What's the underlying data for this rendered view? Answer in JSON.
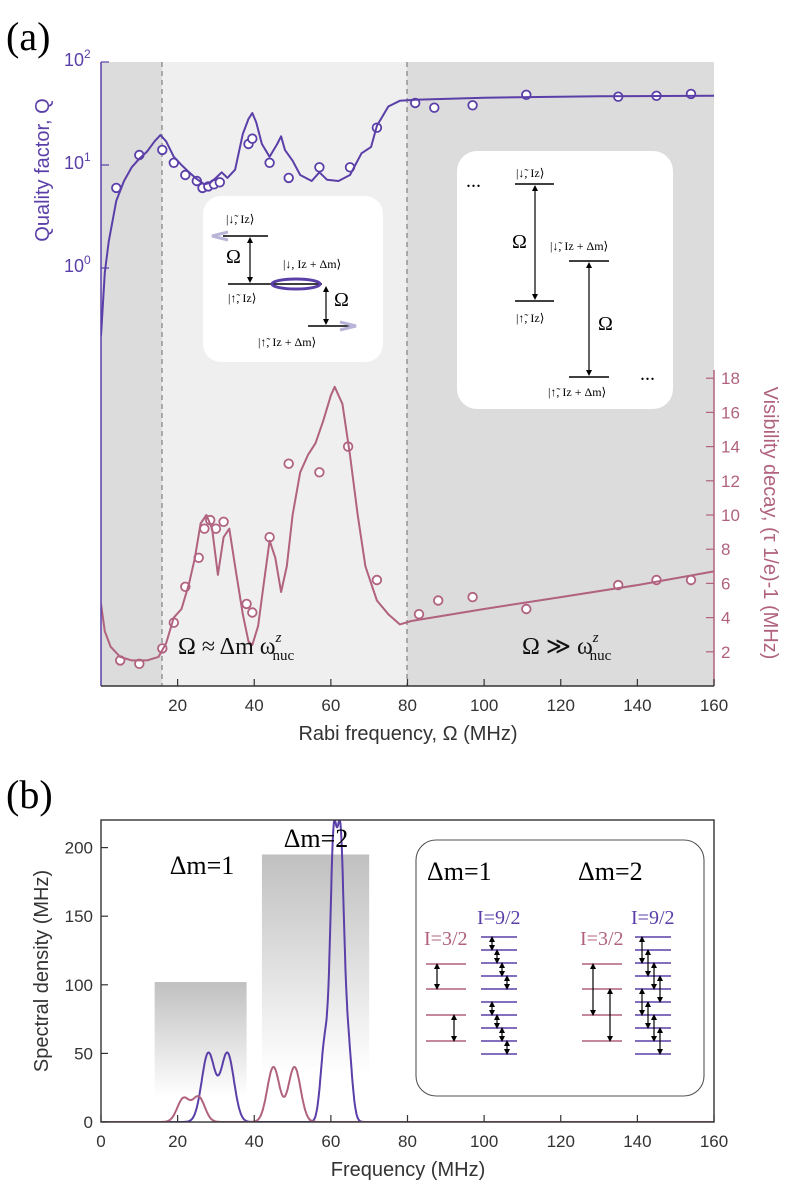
{
  "colors": {
    "purple": "#5b3fa8",
    "pink": "#b0627f",
    "shade_dark": "#dcdcdc",
    "shade_light": "#efefef"
  },
  "panel_a": {
    "label": "(a)",
    "ylabel_left": "Quality factor,  Q",
    "ylabel_right": "Visibility decay, (τ 1/e)-1 (MHz)",
    "xlabel": "Rabi frequency, Ω (MHz)",
    "regime_left": "Ω ≈ Δm ω",
    "regime_left_sup": "z",
    "regime_left_sub": "nuc",
    "regime_right": "Ω ≫ ω",
    "regime_right_sup": "z",
    "regime_right_sub": "nuc",
    "inset1": {
      "l1": "|↓̃, Iz⟩",
      "l2": "|↓, Iz + Δm⟩",
      "l3": "|↑̃, Iz⟩",
      "l4": "|↑̃, Iz + Δm⟩",
      "omega": "Ω"
    },
    "inset2": {
      "l1": "|↓̃, Iz⟩",
      "l2": "|↓̃, Iz + Δm⟩",
      "l3": "|↑̃, Iz⟩",
      "l4": "|↑̃, Iz + Δm⟩",
      "omega": "Ω",
      "dots": "..."
    }
  },
  "panel_b": {
    "label": "(b)",
    "ylabel": "Spectral density (MHz)",
    "xlabel": "Frequency (MHz)",
    "box1_label": "Δm=1",
    "box2_label": "Δm=2",
    "inset_title1": "Δm=1",
    "inset_title2": "Δm=2",
    "spin_small": "I=3/2",
    "spin_large": "I=9/2"
  },
  "chart_data": [
    {
      "type": "scatter",
      "title": "",
      "xlabel": "Rabi frequency, Ω (MHz)",
      "x_ticks": [
        20,
        40,
        60,
        80,
        100,
        120,
        140,
        160
      ],
      "xlim": [
        0,
        160
      ],
      "y_left": {
        "label": "Quality factor, Q",
        "scale": "log",
        "ticks": [
          "10^0",
          "10^1",
          "10^2"
        ]
      },
      "y_right": {
        "label": "Visibility decay, (τ1/e)^-1 (MHz)",
        "ylim": [
          0,
          18
        ],
        "ticks": [
          2,
          4,
          6,
          8,
          10,
          12,
          14,
          16,
          18
        ]
      },
      "regions": [
        {
          "from": 0,
          "to": 16,
          "shade": "dark"
        },
        {
          "from": 16,
          "to": 80,
          "shade": "light",
          "label": "Ω ≈ Δm ω_nuc^z"
        },
        {
          "from": 80,
          "to": 160,
          "shade": "dark",
          "label": "Ω ≫ ω_nuc^z"
        }
      ],
      "series": [
        {
          "name": "Quality factor (data)",
          "color": "#5b3fa8",
          "axis": "left",
          "marker": "circle",
          "points": [
            [
              4,
              6
            ],
            [
              10,
              12.5
            ],
            [
              16,
              14
            ],
            [
              19,
              10.5
            ],
            [
              22,
              8
            ],
            [
              25,
              7
            ],
            [
              26.5,
              6
            ],
            [
              28,
              6.2
            ],
            [
              29.5,
              6.5
            ],
            [
              31,
              6.8
            ],
            [
              38.5,
              16
            ],
            [
              39.5,
              18
            ],
            [
              44,
              10.5
            ],
            [
              49,
              7.5
            ],
            [
              57,
              9.5
            ],
            [
              65,
              9.5
            ],
            [
              72,
              23
            ],
            [
              82,
              40
            ],
            [
              87,
              36
            ],
            [
              97,
              38
            ],
            [
              111,
              48
            ],
            [
              135,
              46
            ],
            [
              145,
              47
            ],
            [
              154,
              49
            ]
          ]
        },
        {
          "name": "Quality factor (fit)",
          "color": "#5b3fa8",
          "axis": "left",
          "line": true,
          "points": [
            [
              0,
              0.22
            ],
            [
              1,
              0.9
            ],
            [
              2,
              1.8
            ],
            [
              4,
              4.5
            ],
            [
              6,
              7
            ],
            [
              8,
              9.5
            ],
            [
              10,
              11.5
            ],
            [
              12,
              13.5
            ],
            [
              14,
              17
            ],
            [
              15.5,
              19.5
            ],
            [
              17,
              17
            ],
            [
              19,
              12
            ],
            [
              21,
              10
            ],
            [
              23,
              8.5
            ],
            [
              25,
              7.3
            ],
            [
              27,
              6.5
            ],
            [
              28.5,
              6.7
            ],
            [
              30,
              7.5
            ],
            [
              31.5,
              8.5
            ],
            [
              33,
              7.5
            ],
            [
              35,
              9
            ],
            [
              37,
              20
            ],
            [
              38.5,
              28
            ],
            [
              39.5,
              32
            ],
            [
              40.5,
              26
            ],
            [
              42,
              16
            ],
            [
              44,
              12
            ],
            [
              46,
              16
            ],
            [
              47,
              19
            ],
            [
              48,
              14
            ],
            [
              50,
              11
            ],
            [
              52,
              8
            ],
            [
              55,
              7
            ],
            [
              57,
              8.5
            ],
            [
              59,
              7.2
            ],
            [
              62,
              7
            ],
            [
              65,
              8
            ],
            [
              68,
              13
            ],
            [
              70.5,
              15
            ],
            [
              72,
              24
            ],
            [
              75,
              37
            ],
            [
              78,
              42
            ],
            [
              82,
              43
            ],
            [
              100,
              45
            ],
            [
              130,
              46.5
            ],
            [
              160,
              47
            ]
          ]
        },
        {
          "name": "Visibility decay (data)",
          "color": "#b0627f",
          "axis": "right",
          "marker": "circle",
          "points": [
            [
              5,
              1.5
            ],
            [
              10,
              1.3
            ],
            [
              16,
              2.2
            ],
            [
              19,
              3.7
            ],
            [
              22,
              5.8
            ],
            [
              25.5,
              7.5
            ],
            [
              27,
              9.2
            ],
            [
              28.5,
              9.7
            ],
            [
              30,
              9.2
            ],
            [
              32,
              9.6
            ],
            [
              38,
              4.8
            ],
            [
              39.5,
              4.3
            ],
            [
              44,
              8.7
            ],
            [
              49,
              13
            ],
            [
              57,
              12.5
            ],
            [
              64.5,
              14
            ],
            [
              72,
              6.2
            ],
            [
              83,
              4.2
            ],
            [
              88,
              5
            ],
            [
              97,
              5.2
            ],
            [
              111,
              4.5
            ],
            [
              135,
              5.9
            ],
            [
              145,
              6.2
            ],
            [
              154,
              6.2
            ]
          ]
        },
        {
          "name": "Visibility decay (fit)",
          "color": "#b0627f",
          "axis": "right",
          "line": true,
          "points": [
            [
              0,
              4.8
            ],
            [
              1,
              3.2
            ],
            [
              2.5,
              2.3
            ],
            [
              5,
              1.7
            ],
            [
              8,
              1.5
            ],
            [
              12,
              1.5
            ],
            [
              15,
              1.7
            ],
            [
              17,
              2.5
            ],
            [
              19,
              4
            ],
            [
              21,
              4.5
            ],
            [
              23,
              6
            ],
            [
              24.5,
              7.5
            ],
            [
              26,
              9.5
            ],
            [
              27.5,
              10
            ],
            [
              29,
              9.2
            ],
            [
              30.5,
              6.5
            ],
            [
              32,
              8.7
            ],
            [
              33.5,
              9.2
            ],
            [
              35,
              7
            ],
            [
              37,
              4.2
            ],
            [
              38.5,
              2.6
            ],
            [
              39.5,
              2.4
            ],
            [
              41,
              3.5
            ],
            [
              42.5,
              6
            ],
            [
              44,
              8.5
            ],
            [
              45.5,
              7.5
            ],
            [
              47,
              5.5
            ],
            [
              48.5,
              7
            ],
            [
              50,
              10
            ],
            [
              52,
              12.5
            ],
            [
              54,
              13.5
            ],
            [
              56,
              14.2
            ],
            [
              58,
              15.5
            ],
            [
              60,
              17
            ],
            [
              61,
              17.5
            ],
            [
              62,
              17
            ],
            [
              63,
              16.5
            ],
            [
              65,
              13.5
            ],
            [
              67,
              10
            ],
            [
              69,
              7
            ],
            [
              72,
              5
            ],
            [
              75,
              4.2
            ],
            [
              78,
              3.6
            ],
            [
              81,
              3.8
            ],
            [
              100,
              4.5
            ],
            [
              120,
              5.2
            ],
            [
              140,
              5.9
            ],
            [
              160,
              6.7
            ]
          ]
        }
      ]
    },
    {
      "type": "area",
      "title": "",
      "xlabel": "Frequency (MHz)",
      "ylabel": "Spectral density (MHz)",
      "xlim": [
        0,
        160
      ],
      "ylim": [
        0,
        220
      ],
      "x_ticks": [
        0,
        20,
        40,
        60,
        80,
        100,
        120,
        140,
        160
      ],
      "y_ticks": [
        0,
        50,
        100,
        150,
        200
      ],
      "bands": [
        {
          "label": "Δm=1",
          "from": 14,
          "to": 38,
          "height": 102
        },
        {
          "label": "Δm=2",
          "from": 42,
          "to": 70,
          "height": 195
        }
      ],
      "series": [
        {
          "name": "I=9/2",
          "color": "#5b3fa8",
          "peaks": [
            {
              "center": 28,
              "height": 50,
              "width": 1.7
            },
            {
              "center": 33,
              "height": 50,
              "width": 1.7
            },
            {
              "center": 58.5,
              "height": 60,
              "width": 1.1
            },
            {
              "center": 60.7,
              "height": 188,
              "width": 0.85
            },
            {
              "center": 62.5,
              "height": 181,
              "width": 0.85
            },
            {
              "center": 64.3,
              "height": 62,
              "width": 1.1
            }
          ]
        },
        {
          "name": "I=3/2",
          "color": "#b0627f",
          "peaks": [
            {
              "center": 21.5,
              "height": 17,
              "width": 1.6
            },
            {
              "center": 25.5,
              "height": 18,
              "width": 1.6
            },
            {
              "center": 45,
              "height": 40,
              "width": 1.6
            },
            {
              "center": 50.5,
              "height": 40,
              "width": 1.6
            }
          ]
        }
      ]
    }
  ]
}
